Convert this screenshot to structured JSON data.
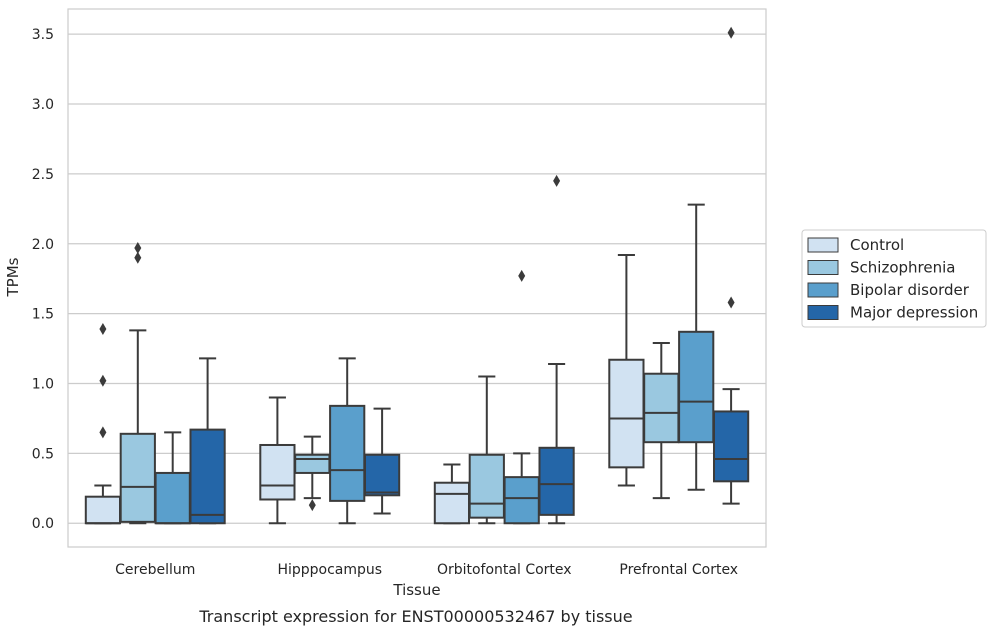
{
  "caption": "Transcript expression for ENST00000532467 by tissue",
  "chart_data": {
    "type": "boxplot",
    "xlabel": "Tissue",
    "ylabel": "TPMs",
    "ylim": [
      -0.17,
      3.68
    ],
    "yticks": [
      "0.0",
      "0.5",
      "1.0",
      "1.5",
      "2.0",
      "2.5",
      "3.0",
      "3.5"
    ],
    "grid": "horizontal",
    "legend_placement": "right",
    "categories": [
      "Cerebellum",
      "Hipppocampus",
      "Orbitofontal Cortex",
      "Prefrontal Cortex"
    ],
    "series": [
      {
        "name": "Control",
        "color": "#d1e2f2",
        "boxes": [
          {
            "whislo": 0.0,
            "q1": 0.0,
            "med": 0.0,
            "q3": 0.19,
            "whishi": 0.27,
            "fliers": [
              0.65,
              1.02,
              1.39
            ]
          },
          {
            "whislo": 0.0,
            "q1": 0.17,
            "med": 0.27,
            "q3": 0.56,
            "whishi": 0.9,
            "fliers": []
          },
          {
            "whislo": 0.0,
            "q1": 0.0,
            "med": 0.21,
            "q3": 0.29,
            "whishi": 0.42,
            "fliers": []
          },
          {
            "whislo": 0.27,
            "q1": 0.4,
            "med": 0.75,
            "q3": 1.17,
            "whishi": 1.92,
            "fliers": []
          }
        ]
      },
      {
        "name": "Schizophrenia",
        "color": "#9ac8e0",
        "boxes": [
          {
            "whislo": 0.0,
            "q1": 0.01,
            "med": 0.26,
            "q3": 0.64,
            "whishi": 1.38,
            "fliers": [
              1.9,
              1.97
            ]
          },
          {
            "whislo": 0.18,
            "q1": 0.36,
            "med": 0.46,
            "q3": 0.49,
            "whishi": 0.62,
            "fliers": [
              0.13
            ]
          },
          {
            "whislo": 0.0,
            "q1": 0.04,
            "med": 0.14,
            "q3": 0.49,
            "whishi": 1.05,
            "fliers": []
          },
          {
            "whislo": 0.18,
            "q1": 0.58,
            "med": 0.79,
            "q3": 1.07,
            "whishi": 1.29,
            "fliers": []
          }
        ]
      },
      {
        "name": "Bipolar disorder",
        "color": "#5a9fcc",
        "boxes": [
          {
            "whislo": 0.0,
            "q1": 0.0,
            "med": 0.0,
            "q3": 0.36,
            "whishi": 0.65,
            "fliers": []
          },
          {
            "whislo": 0.0,
            "q1": 0.16,
            "med": 0.38,
            "q3": 0.84,
            "whishi": 1.18,
            "fliers": []
          },
          {
            "whislo": 0.0,
            "q1": 0.0,
            "med": 0.18,
            "q3": 0.33,
            "whishi": 0.5,
            "fliers": [
              1.77
            ]
          },
          {
            "whislo": 0.24,
            "q1": 0.58,
            "med": 0.87,
            "q3": 1.37,
            "whishi": 2.28,
            "fliers": []
          }
        ]
      },
      {
        "name": "Major depression",
        "color": "#2466a8",
        "boxes": [
          {
            "whislo": 0.0,
            "q1": 0.0,
            "med": 0.06,
            "q3": 0.67,
            "whishi": 1.18,
            "fliers": []
          },
          {
            "whislo": 0.07,
            "q1": 0.2,
            "med": 0.22,
            "q3": 0.49,
            "whishi": 0.82,
            "fliers": []
          },
          {
            "whislo": 0.0,
            "q1": 0.06,
            "med": 0.28,
            "q3": 0.54,
            "whishi": 1.14,
            "fliers": [
              2.45
            ]
          },
          {
            "whislo": 0.14,
            "q1": 0.3,
            "med": 0.46,
            "q3": 0.8,
            "whishi": 0.96,
            "fliers": [
              1.58,
              3.51
            ]
          }
        ]
      }
    ]
  }
}
